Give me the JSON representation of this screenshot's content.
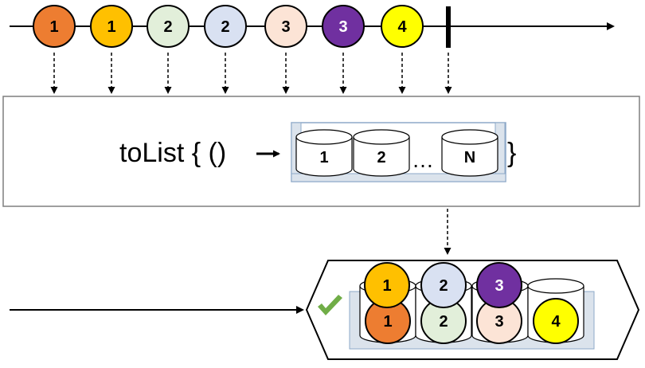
{
  "input_marbles": [
    {
      "label": "1",
      "fill": "#ED7D31",
      "text_color": "#000000"
    },
    {
      "label": "1",
      "fill": "#FFC000",
      "text_color": "#000000"
    },
    {
      "label": "2",
      "fill": "#E2EFDA",
      "text_color": "#000000"
    },
    {
      "label": "2",
      "fill": "#D9E1F2",
      "text_color": "#000000"
    },
    {
      "label": "3",
      "fill": "#FCE4D6",
      "text_color": "#000000"
    },
    {
      "label": "3",
      "fill": "#7030A0",
      "text_color": "#ffffff"
    },
    {
      "label": "4",
      "fill": "#FFFF00",
      "text_color": "#000000"
    }
  ],
  "operator": {
    "text_prefix": "toList { ()",
    "text_suffix": "}",
    "cylinders": [
      "1",
      "2",
      "N"
    ],
    "ellipsis": "…"
  },
  "output": {
    "check_color": "#70AD47",
    "bottom_marbles": [
      {
        "label": "1",
        "fill": "#ED7D31",
        "text_color": "#000000"
      },
      {
        "label": "2",
        "fill": "#E2EFDA",
        "text_color": "#000000"
      },
      {
        "label": "3",
        "fill": "#FCE4D6",
        "text_color": "#000000"
      },
      {
        "label": "4",
        "fill": "#FFFF00",
        "text_color": "#000000"
      }
    ],
    "top_marbles": [
      {
        "label": "1",
        "fill": "#FFC000",
        "text_color": "#000000"
      },
      {
        "label": "2",
        "fill": "#D9E1F2",
        "text_color": "#000000"
      },
      {
        "label": "3",
        "fill": "#7030A0",
        "text_color": "#ffffff"
      }
    ]
  }
}
